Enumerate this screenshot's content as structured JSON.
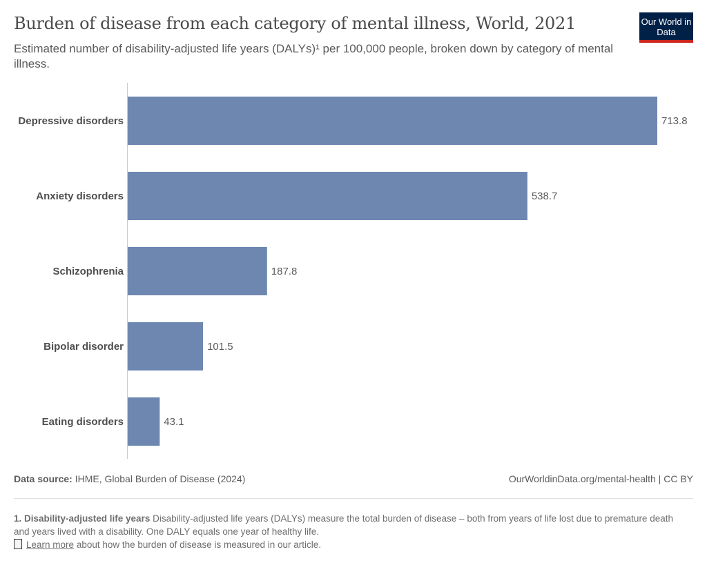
{
  "header": {
    "title": "Burden of disease from each category of mental illness, World, 2021",
    "subtitle": "Estimated number of disability-adjusted life years (DALYs)¹ per 100,000 people, broken down by category of mental illness.",
    "logo": "Our World in Data"
  },
  "chart_data": {
    "type": "bar",
    "orientation": "horizontal",
    "categories": [
      "Depressive disorders",
      "Anxiety disorders",
      "Schizophrenia",
      "Bipolar disorder",
      "Eating disorders"
    ],
    "values": [
      713.8,
      538.7,
      187.8,
      101.5,
      43.1
    ],
    "data_labels": [
      "713.8",
      "538.7",
      "187.8",
      "101.5",
      "43.1"
    ],
    "color": "#6d87b0",
    "grid": false
  },
  "footer": {
    "source_label": "Data source:",
    "source": "IHME, Global Burden of Disease (2024)",
    "url": "OurWorldinData.org/mental-health | CC BY"
  },
  "note": {
    "heading": "1. Disability-adjusted life years",
    "text": "Disability-adjusted life years (DALYs) measure the total burden of disease – both from years of life lost due to premature death and years lived with a disability. One DALY equals one year of healthy life.",
    "link": "Learn more",
    "link_after": "about how the burden of disease is measured in our article.",
    "icon": "document-icon"
  }
}
